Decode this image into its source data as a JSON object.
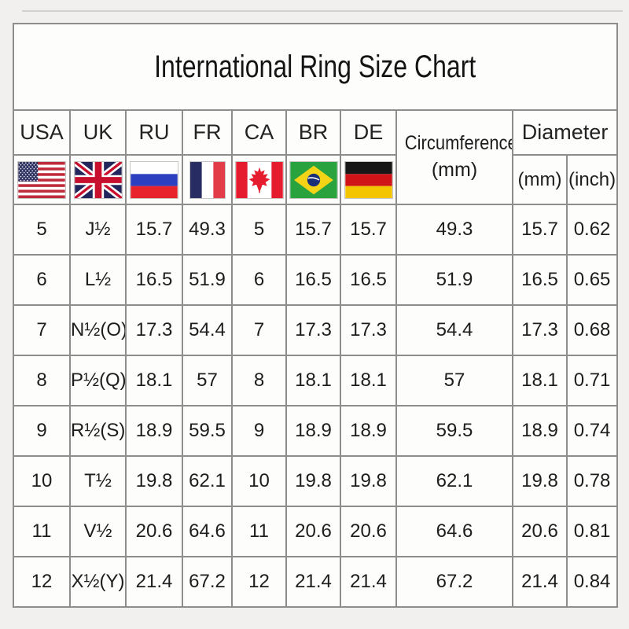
{
  "title": "International Ring Size Chart",
  "colors": {
    "page_background": "#f1f0ee",
    "cell_background": "#fdfdfc",
    "grid_line": "#8d8d8d",
    "text": "#1d1d1d"
  },
  "header": {
    "country_columns": [
      {
        "code": "USA",
        "flag_icon": "flag-usa"
      },
      {
        "code": "UK",
        "flag_icon": "flag-uk"
      },
      {
        "code": "RU",
        "flag_icon": "flag-russia"
      },
      {
        "code": "FR",
        "flag_icon": "flag-france"
      },
      {
        "code": "CA",
        "flag_icon": "flag-canada"
      },
      {
        "code": "BR",
        "flag_icon": "flag-brazil"
      },
      {
        "code": "DE",
        "flag_icon": "flag-germany"
      }
    ],
    "circumference": {
      "line1": "Circumference",
      "line2": "(mm)"
    },
    "diameter": {
      "label": "Diameter",
      "unit_mm": "(mm)",
      "unit_inch": "(inch)"
    }
  },
  "table": {
    "rows": [
      [
        "5",
        "J½",
        "15.7",
        "49.3",
        "5",
        "15.7",
        "15.7",
        "49.3",
        "15.7",
        "0.62"
      ],
      [
        "6",
        "L½",
        "16.5",
        "51.9",
        "6",
        "16.5",
        "16.5",
        "51.9",
        "16.5",
        "0.65"
      ],
      [
        "7",
        "N½(O)",
        "17.3",
        "54.4",
        "7",
        "17.3",
        "17.3",
        "54.4",
        "17.3",
        "0.68"
      ],
      [
        "8",
        "P½(Q)",
        "18.1",
        "57",
        "8",
        "18.1",
        "18.1",
        "57",
        "18.1",
        "0.71"
      ],
      [
        "9",
        "R½(S)",
        "18.9",
        "59.5",
        "9",
        "18.9",
        "18.9",
        "59.5",
        "18.9",
        "0.74"
      ],
      [
        "10",
        "T½",
        "19.8",
        "62.1",
        "10",
        "19.8",
        "19.8",
        "62.1",
        "19.8",
        "0.78"
      ],
      [
        "11",
        "V½",
        "20.6",
        "64.6",
        "11",
        "20.6",
        "20.6",
        "64.6",
        "20.6",
        "0.81"
      ],
      [
        "12",
        "X½(Y)",
        "21.4",
        "67.2",
        "12",
        "21.4",
        "21.4",
        "67.2",
        "21.4",
        "0.84"
      ]
    ]
  },
  "chart_data": {
    "type": "table",
    "title": "International Ring Size Chart",
    "columns": [
      "USA",
      "UK",
      "RU",
      "FR",
      "CA",
      "BR",
      "DE",
      "Circumference (mm)",
      "Diameter (mm)",
      "Diameter (inch)"
    ],
    "rows": [
      [
        "5",
        "J½",
        "15.7",
        "49.3",
        "5",
        "15.7",
        "15.7",
        "49.3",
        "15.7",
        "0.62"
      ],
      [
        "6",
        "L½",
        "16.5",
        "51.9",
        "6",
        "16.5",
        "16.5",
        "51.9",
        "16.5",
        "0.65"
      ],
      [
        "7",
        "N½(O)",
        "17.3",
        "54.4",
        "7",
        "17.3",
        "17.3",
        "54.4",
        "17.3",
        "0.68"
      ],
      [
        "8",
        "P½(Q)",
        "18.1",
        "57",
        "8",
        "18.1",
        "18.1",
        "57",
        "18.1",
        "0.71"
      ],
      [
        "9",
        "R½(S)",
        "18.9",
        "59.5",
        "9",
        "18.9",
        "18.9",
        "59.5",
        "18.9",
        "0.74"
      ],
      [
        "10",
        "T½",
        "19.8",
        "62.1",
        "10",
        "19.8",
        "19.8",
        "62.1",
        "19.8",
        "0.78"
      ],
      [
        "11",
        "V½",
        "20.6",
        "64.6",
        "11",
        "20.6",
        "20.6",
        "64.6",
        "20.6",
        "0.81"
      ],
      [
        "12",
        "X½(Y)",
        "21.4",
        "67.2",
        "12",
        "21.4",
        "21.4",
        "67.2",
        "21.4",
        "0.84"
      ]
    ]
  }
}
